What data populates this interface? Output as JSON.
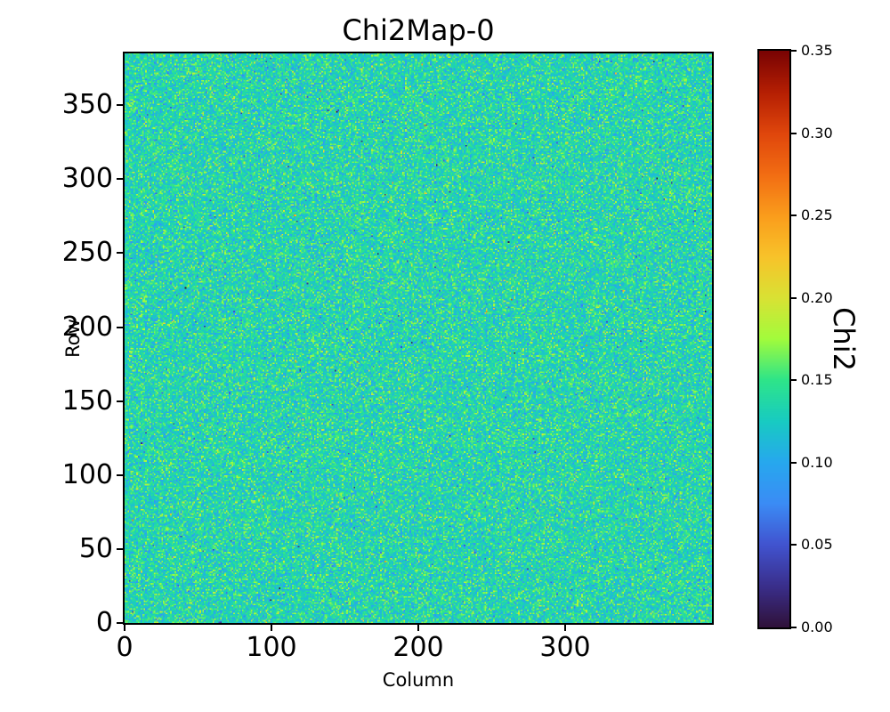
{
  "figure": {
    "background": "#ffffff",
    "text_color": "#000000"
  },
  "chart_data": {
    "type": "heatmap",
    "title": "Chi2Map-0",
    "xlabel": "Column",
    "ylabel": "Row",
    "x_range": [
      0,
      400
    ],
    "y_range": [
      0,
      385
    ],
    "x_ticks": [
      0,
      100,
      200,
      300
    ],
    "y_ticks": [
      0,
      50,
      100,
      150,
      200,
      250,
      300,
      350
    ],
    "grid": false,
    "legend": "none",
    "colorbar": {
      "label": "Chi2",
      "side": "right",
      "range": [
        0,
        0.35
      ],
      "ticks": [
        0.0,
        0.05,
        0.1,
        0.15,
        0.2,
        0.25,
        0.3,
        0.35
      ],
      "tick_format": "0.00",
      "colormap": "turbo",
      "stops": [
        [
          0.0,
          "#30123b"
        ],
        [
          0.071,
          "#3a2f8c"
        ],
        [
          0.143,
          "#4154d0"
        ],
        [
          0.214,
          "#3b8cf5"
        ],
        [
          0.286,
          "#27a8ee"
        ],
        [
          0.357,
          "#18cbc2"
        ],
        [
          0.429,
          "#2ee589"
        ],
        [
          0.5,
          "#a2fc3c"
        ],
        [
          0.571,
          "#d9e234"
        ],
        [
          0.643,
          "#f8c32a"
        ],
        [
          0.714,
          "#fa9d1c"
        ],
        [
          0.786,
          "#f26d13"
        ],
        [
          0.857,
          "#e0470c"
        ],
        [
          0.929,
          "#b51f03"
        ],
        [
          1.0,
          "#7a0403"
        ]
      ]
    },
    "values_summary": {
      "description": "Dense uniform speckle noise over the whole 400x385 map; chi2 values cluster around 0.13 (cyan-green) with sparse blue and orange outlier pixels, no large-scale structure.",
      "cols": 400,
      "rows": 385,
      "mean": 0.134,
      "std": 0.022,
      "outlier_fraction": 0.02,
      "outlier_std": 0.045,
      "seed": 42
    }
  }
}
